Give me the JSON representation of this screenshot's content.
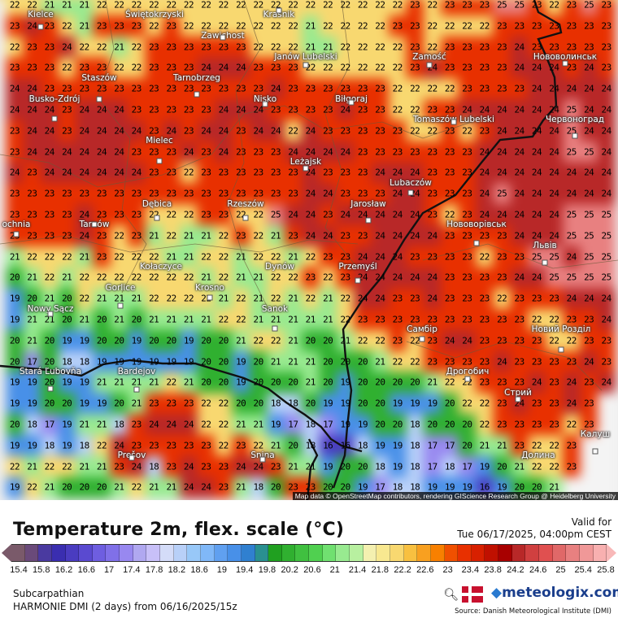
{
  "title": "Temperature 2m, flex. scale (°C)",
  "valid_label": "Valid for",
  "valid_time": "Tue 06/17/2025, 04:00pm CEST",
  "region": "Subcarpathian",
  "model": "HARMONIE DMI (2 days) from  06/16/2025/15z",
  "brand": "meteologix.com",
  "source": "Source: Danish Meteorological Institute (DMI)",
  "attribution": "Map data © OpenStreetMap contributors, rendering GIScience Research Group @ Heidelberg University",
  "icons": [
    "zoom-hd-icon",
    "denmark-flag-icon",
    "meteologix-logo-icon"
  ],
  "legend": {
    "unit": "°C",
    "range": [
      15.2,
      26.0
    ],
    "ticks": [
      "15.4",
      "15.8",
      "16.2",
      "16.6",
      "17",
      "17.4",
      "17.8",
      "18.2",
      "18.6",
      "19",
      "19.4",
      "19.8",
      "20.2",
      "20.6",
      "21",
      "21.4",
      "21.8",
      "22.2",
      "22.6",
      "23",
      "23.4",
      "23.8",
      "24.2",
      "24.6",
      "25",
      "25.4",
      "25.8"
    ],
    "colors": [
      "#7a5a6a",
      "#6a4a7a",
      "#4a3aa0",
      "#3a2eb0",
      "#4a3cc0",
      "#5a4ad0",
      "#6e5ee0",
      "#8070e8",
      "#9888f0",
      "#b0a8f0",
      "#c8c0f8",
      "#d4dcf8",
      "#b8d0f8",
      "#98c8f8",
      "#80b8f8",
      "#60a0f0",
      "#4890e8",
      "#3080d0",
      "#2a9090",
      "#20a020",
      "#30b030",
      "#40c040",
      "#50d050",
      "#70e070",
      "#98ea90",
      "#b8f0a0",
      "#f4f0b0",
      "#f8e890",
      "#f8d870",
      "#f8c040",
      "#f8a020",
      "#f88000",
      "#f05000",
      "#e83000",
      "#d82000",
      "#c01000",
      "#a80000",
      "#b82828",
      "#d04040",
      "#e05050",
      "#e06868",
      "#e88080",
      "#f09898",
      "#f8b0b0"
    ]
  },
  "cities": [
    "Kielce",
    "Świętokrzyski",
    "Kraśnik",
    "Zawichost",
    "Janów Lubelski",
    "Zamość",
    "Нововолинськ",
    "Busko-Zdrój",
    "Staszów",
    "Tarnobrzeg",
    "Nisko",
    "Biłgoraj",
    "Tomaszów Lubelski",
    "Червоноград",
    "Mielec",
    "Leżajsk",
    "Lubaczów",
    "Dębica",
    "Rzeszów",
    "Jarosław",
    "Tarnów",
    "ochnia",
    "Нововорівськ",
    "Львів",
    "Kołaczyce",
    "Dynów",
    "Przemyśl",
    "Krosno",
    "Gorlice",
    "Nowy Sącz",
    "Sanok",
    "Самбір",
    "Новий Розділ",
    "Stará Ľubovňa",
    "Bardejov",
    "Дрогобич",
    "Стрий",
    "Prešov",
    "Snina",
    "Калуш",
    "Долина"
  ],
  "grid": [
    [
      "22",
      "22",
      "21",
      "21",
      "21",
      "22",
      "22",
      "22",
      "22",
      "22",
      "22",
      "22",
      "22",
      "22",
      "22",
      "22",
      "22",
      "22",
      "22",
      "22",
      "22",
      "22",
      "22",
      "23",
      "22",
      "23",
      "23",
      "23",
      "25",
      "25",
      "23",
      "22",
      "23",
      "25",
      "23"
    ],
    [
      "23",
      "24",
      "23",
      "22",
      "21",
      "23",
      "23",
      "23",
      "22",
      "23",
      "22",
      "22",
      "22",
      "22",
      "22",
      "22",
      "22",
      "21",
      "22",
      "22",
      "22",
      "22",
      "23",
      "23",
      "22",
      "22",
      "22",
      "22",
      "23",
      "23",
      "23",
      "23",
      "23",
      "23",
      "23"
    ],
    [
      "22",
      "23",
      "23",
      "24",
      "22",
      "22",
      "21",
      "22",
      "23",
      "23",
      "23",
      "23",
      "23",
      "23",
      "22",
      "22",
      "22",
      "21",
      "21",
      "22",
      "22",
      "22",
      "22",
      "23",
      "22",
      "23",
      "23",
      "23",
      "23",
      "24",
      "23",
      "23",
      "23",
      "23",
      "23"
    ],
    [
      "23",
      "23",
      "23",
      "22",
      "23",
      "23",
      "22",
      "22",
      "23",
      "23",
      "23",
      "24",
      "24",
      "24",
      "23",
      "23",
      "23",
      "22",
      "22",
      "22",
      "22",
      "22",
      "22",
      "23",
      "24",
      "23",
      "23",
      "23",
      "23",
      "24",
      "24",
      "24",
      "23",
      "24",
      "23"
    ],
    [
      "24",
      "24",
      "23",
      "23",
      "23",
      "23",
      "23",
      "23",
      "23",
      "23",
      "23",
      "23",
      "23",
      "23",
      "23",
      "24",
      "23",
      "23",
      "23",
      "23",
      "23",
      "23",
      "22",
      "22",
      "22",
      "22",
      "23",
      "23",
      "23",
      "23",
      "24",
      "24",
      "24",
      "24",
      "24"
    ],
    [
      "24",
      "24",
      "24",
      "23",
      "24",
      "24",
      "24",
      "23",
      "23",
      "23",
      "23",
      "23",
      "24",
      "24",
      "24",
      "23",
      "23",
      "23",
      "23",
      "24",
      "23",
      "23",
      "22",
      "22",
      "23",
      "23",
      "24",
      "24",
      "24",
      "24",
      "24",
      "24",
      "25",
      "24",
      "24"
    ],
    [
      "23",
      "24",
      "24",
      "23",
      "24",
      "24",
      "24",
      "24",
      "23",
      "24",
      "23",
      "24",
      "24",
      "23",
      "24",
      "24",
      "22",
      "24",
      "23",
      "23",
      "23",
      "23",
      "23",
      "22",
      "22",
      "23",
      "22",
      "23",
      "24",
      "24",
      "24",
      "24",
      "25",
      "24",
      "24"
    ],
    [
      "23",
      "24",
      "24",
      "24",
      "24",
      "24",
      "24",
      "23",
      "23",
      "23",
      "24",
      "23",
      "24",
      "23",
      "23",
      "23",
      "24",
      "24",
      "24",
      "24",
      "23",
      "23",
      "23",
      "23",
      "23",
      "23",
      "23",
      "24",
      "24",
      "24",
      "24",
      "24",
      "25",
      "25",
      "24"
    ],
    [
      "24",
      "23",
      "24",
      "24",
      "24",
      "24",
      "24",
      "24",
      "23",
      "23",
      "22",
      "23",
      "23",
      "23",
      "23",
      "23",
      "23",
      "24",
      "23",
      "23",
      "23",
      "24",
      "24",
      "24",
      "23",
      "23",
      "23",
      "24",
      "24",
      "24",
      "24",
      "24",
      "24",
      "24",
      "24"
    ],
    [
      "23",
      "23",
      "23",
      "23",
      "23",
      "23",
      "23",
      "23",
      "23",
      "23",
      "23",
      "23",
      "23",
      "23",
      "23",
      "23",
      "23",
      "24",
      "24",
      "23",
      "23",
      "23",
      "24",
      "24",
      "23",
      "23",
      "23",
      "24",
      "25",
      "24",
      "24",
      "24",
      "24",
      "24",
      "24"
    ],
    [
      "23",
      "23",
      "23",
      "23",
      "24",
      "23",
      "23",
      "23",
      "22",
      "22",
      "22",
      "23",
      "23",
      "22",
      "22",
      "25",
      "24",
      "24",
      "23",
      "24",
      "24",
      "24",
      "24",
      "24",
      "23",
      "22",
      "23",
      "24",
      "24",
      "24",
      "24",
      "24",
      "25",
      "25",
      "25"
    ],
    [
      "23",
      "23",
      "23",
      "23",
      "24",
      "23",
      "22",
      "23",
      "21",
      "22",
      "21",
      "21",
      "22",
      "23",
      "22",
      "21",
      "23",
      "24",
      "24",
      "23",
      "23",
      "24",
      "24",
      "24",
      "24",
      "23",
      "23",
      "23",
      "23",
      "24",
      "24",
      "24",
      "25",
      "25",
      "25"
    ],
    [
      "21",
      "22",
      "22",
      "22",
      "21",
      "23",
      "22",
      "22",
      "22",
      "21",
      "21",
      "22",
      "22",
      "21",
      "22",
      "22",
      "21",
      "22",
      "23",
      "23",
      "24",
      "24",
      "24",
      "23",
      "23",
      "23",
      "23",
      "22",
      "23",
      "23",
      "25",
      "25",
      "24",
      "25",
      "25"
    ],
    [
      "20",
      "21",
      "22",
      "21",
      "22",
      "22",
      "22",
      "22",
      "22",
      "22",
      "22",
      "21",
      "22",
      "21",
      "21",
      "22",
      "22",
      "23",
      "22",
      "23",
      "24",
      "24",
      "24",
      "24",
      "24",
      "23",
      "23",
      "23",
      "23",
      "24",
      "24",
      "25",
      "25",
      "25",
      "25"
    ],
    [
      "19",
      "20",
      "21",
      "20",
      "22",
      "21",
      "21",
      "21",
      "22",
      "22",
      "22",
      "22",
      "21",
      "22",
      "21",
      "22",
      "21",
      "22",
      "21",
      "22",
      "24",
      "24",
      "23",
      "23",
      "24",
      "23",
      "23",
      "23",
      "22",
      "23",
      "23",
      "23",
      "24",
      "24",
      "24"
    ],
    [
      "19",
      "21",
      "21",
      "20",
      "21",
      "20",
      "21",
      "20",
      "21",
      "21",
      "21",
      "21",
      "22",
      "22",
      "21",
      "21",
      "21",
      "21",
      "21",
      "22",
      "23",
      "23",
      "23",
      "23",
      "23",
      "23",
      "23",
      "23",
      "23",
      "23",
      "22",
      "22",
      "23",
      "23",
      "24"
    ],
    [
      "20",
      "21",
      "20",
      "19",
      "19",
      "20",
      "20",
      "19",
      "20",
      "20",
      "19",
      "20",
      "20",
      "21",
      "22",
      "22",
      "21",
      "20",
      "20",
      "21",
      "22",
      "22",
      "23",
      "22",
      "23",
      "24",
      "24",
      "23",
      "23",
      "23",
      "23",
      "22",
      "22",
      "23",
      "23"
    ],
    [
      "20",
      "17",
      "20",
      "18",
      "18",
      "19",
      "19",
      "19",
      "19",
      "19",
      "19",
      "20",
      "20",
      "19",
      "20",
      "21",
      "21",
      "21",
      "20",
      "20",
      "20",
      "21",
      "22",
      "22",
      "23",
      "23",
      "23",
      "23",
      "24",
      "23",
      "23",
      "23",
      "23",
      "24",
      "23"
    ],
    [
      "19",
      "19",
      "20",
      "19",
      "19",
      "21",
      "21",
      "21",
      "21",
      "22",
      "21",
      "20",
      "20",
      "19",
      "20",
      "20",
      "20",
      "21",
      "20",
      "19",
      "20",
      "20",
      "20",
      "20",
      "21",
      "22",
      "22",
      "23",
      "23",
      "23",
      "24",
      "23",
      "24",
      "23",
      "24"
    ],
    [
      "19",
      "19",
      "20",
      "20",
      "19",
      "19",
      "20",
      "21",
      "23",
      "23",
      "23",
      "22",
      "22",
      "20",
      "20",
      "18",
      "18",
      "20",
      "19",
      "19",
      "20",
      "20",
      "19",
      "19",
      "19",
      "20",
      "22",
      "22",
      "23",
      "24",
      "23",
      "23",
      "24",
      "23",
      ""
    ],
    [
      "20",
      "18",
      "17",
      "19",
      "21",
      "21",
      "18",
      "23",
      "24",
      "24",
      "24",
      "22",
      "22",
      "21",
      "21",
      "19",
      "17",
      "18",
      "17",
      "19",
      "19",
      "20",
      "20",
      "18",
      "20",
      "20",
      "20",
      "22",
      "23",
      "23",
      "23",
      "23",
      "22",
      "23",
      ""
    ],
    [
      "19",
      "19",
      "18",
      "19",
      "18",
      "22",
      "24",
      "23",
      "23",
      "23",
      "23",
      "23",
      "22",
      "23",
      "22",
      "21",
      "20",
      "18",
      "16",
      "16",
      "18",
      "19",
      "19",
      "18",
      "17",
      "17",
      "20",
      "21",
      "21",
      "23",
      "22",
      "22",
      "23",
      "",
      ""
    ],
    [
      "22",
      "21",
      "22",
      "22",
      "21",
      "21",
      "23",
      "24",
      "18",
      "23",
      "24",
      "23",
      "23",
      "24",
      "24",
      "23",
      "21",
      "21",
      "19",
      "20",
      "20",
      "18",
      "19",
      "18",
      "17",
      "18",
      "17",
      "19",
      "20",
      "21",
      "22",
      "22",
      "23",
      "",
      ""
    ],
    [
      "19",
      "22",
      "21",
      "20",
      "20",
      "20",
      "21",
      "22",
      "21",
      "21",
      "24",
      "24",
      "23",
      "21",
      "18",
      "20",
      "23",
      "23",
      "20",
      "20",
      "19",
      "17",
      "18",
      "18",
      "19",
      "19",
      "19",
      "16",
      "19",
      "20",
      "20",
      "21",
      "",
      "",
      ""
    ]
  ]
}
